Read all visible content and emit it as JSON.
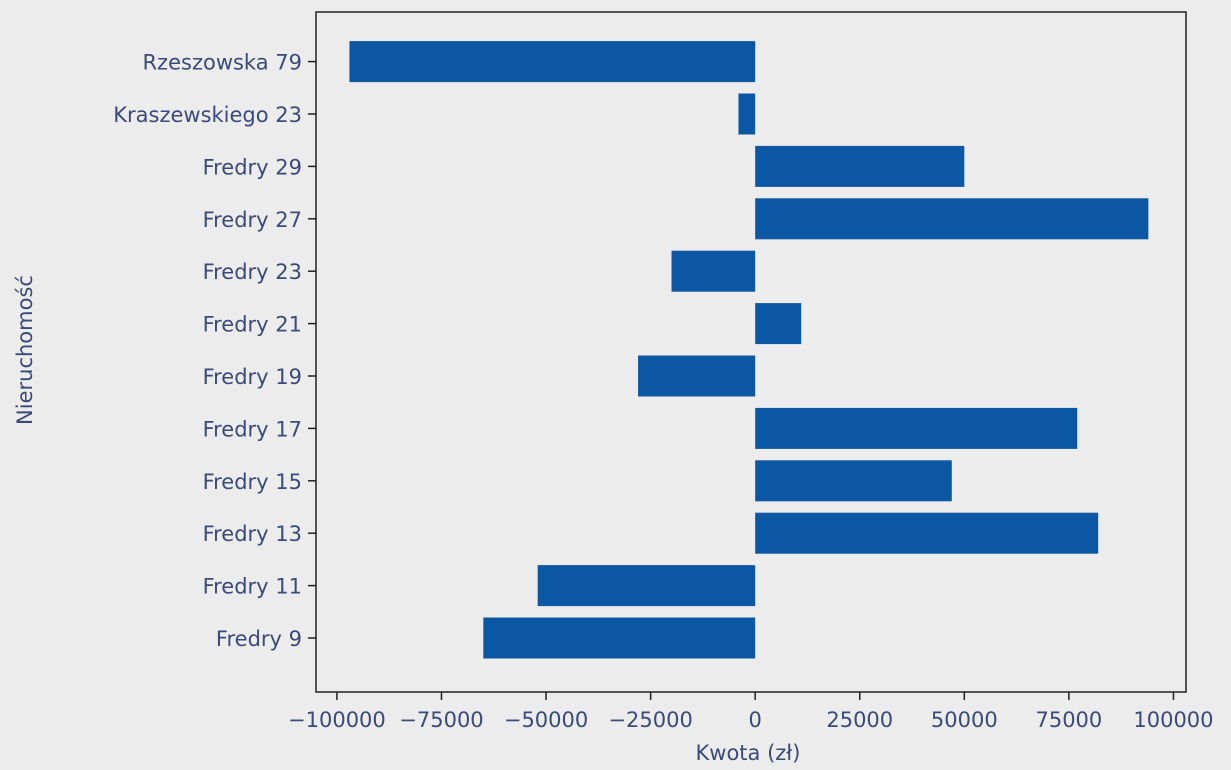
{
  "chart_data": {
    "type": "bar",
    "orientation": "horizontal",
    "title": "",
    "xlabel": "Kwota (zł)",
    "ylabel": "Nieruchomość",
    "xlim": [
      -105000,
      103000
    ],
    "xticks": [
      -100000,
      -75000,
      -50000,
      -25000,
      0,
      25000,
      50000,
      75000,
      100000
    ],
    "xtick_labels": [
      "−100000",
      "−75000",
      "−50000",
      "−25000",
      "0",
      "25000",
      "50000",
      "75000",
      "100000"
    ],
    "categories": [
      "Fredry 9",
      "Fredry 11",
      "Fredry 13",
      "Fredry 15",
      "Fredry 17",
      "Fredry 19",
      "Fredry 21",
      "Fredry 23",
      "Fredry 27",
      "Fredry 29",
      "Kraszewskiego 23",
      "Rzeszowska 79"
    ],
    "values": [
      -65000,
      -52000,
      82000,
      47000,
      77000,
      -28000,
      11000,
      -20000,
      94000,
      50000,
      -4000,
      -97000
    ],
    "bar_color": "#0b57a4",
    "grid": false,
    "legend": "none"
  }
}
